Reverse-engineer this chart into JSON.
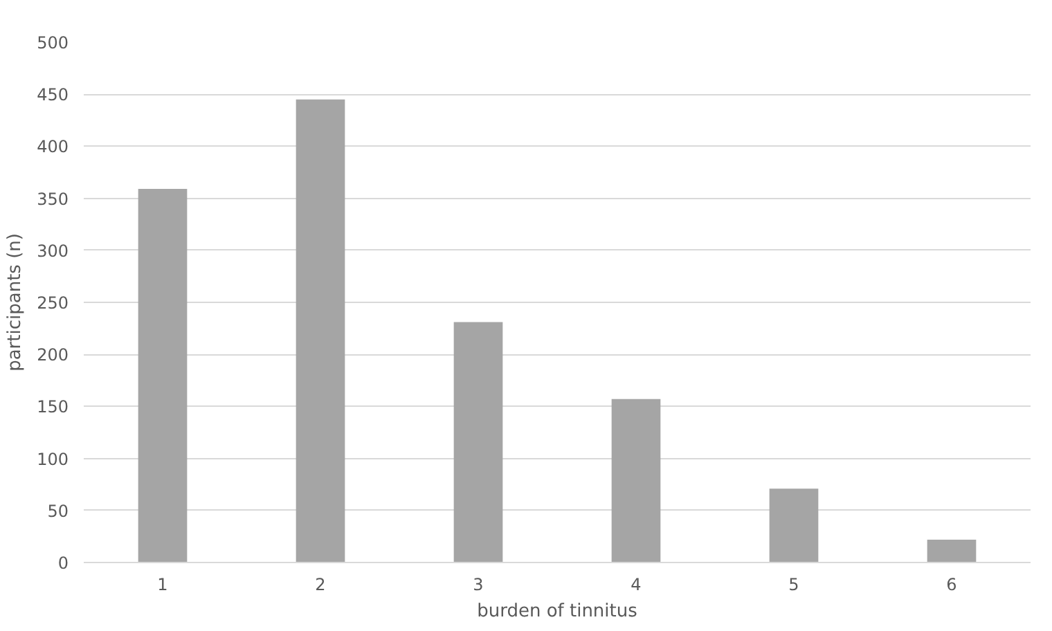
{
  "chart_data": {
    "type": "bar",
    "xlabel": "burden of tinnitus",
    "ylabel": "participants (n)",
    "categories": [
      "1",
      "2",
      "3",
      "4",
      "5",
      "6"
    ],
    "values": [
      359,
      445,
      231,
      157,
      71,
      22
    ],
    "color": "#a5a5a5",
    "ylim": [
      0,
      500
    ],
    "yticks": [
      0,
      50,
      100,
      150,
      200,
      250,
      300,
      350,
      400,
      450,
      500
    ],
    "grid": "y"
  }
}
